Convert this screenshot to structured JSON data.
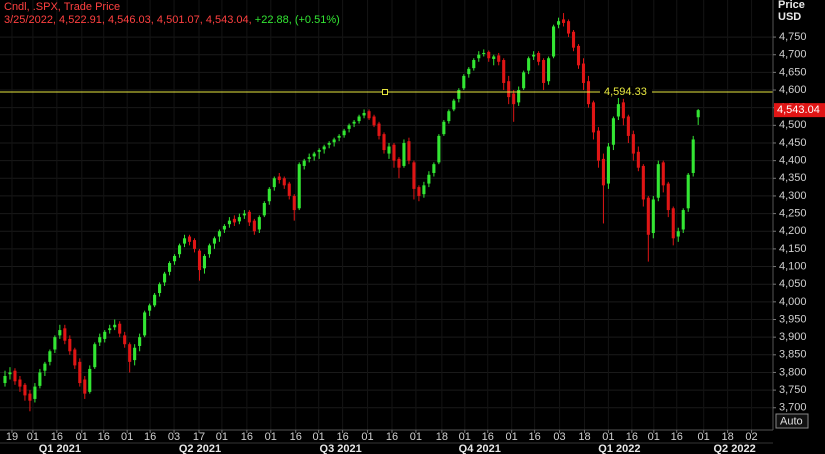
{
  "chart_data": {
    "type": "candlestick",
    "legend": "Cndl, .SPX, Trade Price",
    "legend_values": "3/25/2022, 4,522.91, 4,546.03, 4,501.07, 4,543.04,",
    "legend_change": "+22.88, (+0.51%)",
    "y_axis_title": "Price",
    "y_axis_unit": "USD",
    "button": "Auto",
    "up_color": "#33e633",
    "down_color": "#e01515",
    "grid": true,
    "ylim": [
      3637,
      4855
    ],
    "yticks": [
      {
        "value": 3700,
        "label": "3,700"
      },
      {
        "value": 3750,
        "label": "3,750"
      },
      {
        "value": 3800,
        "label": "3,800"
      },
      {
        "value": 3850,
        "label": "3,850"
      },
      {
        "value": 3900,
        "label": "3,900"
      },
      {
        "value": 3950,
        "label": "3,950"
      },
      {
        "value": 4000,
        "label": "4,000"
      },
      {
        "value": 4050,
        "label": "4,050"
      },
      {
        "value": 4100,
        "label": "4,100"
      },
      {
        "value": 4150,
        "label": "4,150"
      },
      {
        "value": 4200,
        "label": "4,200"
      },
      {
        "value": 4250,
        "label": "4,250"
      },
      {
        "value": 4300,
        "label": "4,300"
      },
      {
        "value": 4350,
        "label": "4,350"
      },
      {
        "value": 4400,
        "label": "4,400"
      },
      {
        "value": 4450,
        "label": "4,450"
      },
      {
        "value": 4500,
        "label": "4,500"
      },
      {
        "value": 4550,
        "label": "4,550"
      },
      {
        "value": 4600,
        "label": "4,600"
      },
      {
        "value": 4650,
        "label": "4,650"
      },
      {
        "value": 4700,
        "label": "4,700"
      },
      {
        "value": 4750,
        "label": "4,750"
      }
    ],
    "xlim": [
      -1,
      154
    ],
    "xticks": [
      {
        "value": 1.4,
        "label": "19"
      },
      {
        "value": 5.6,
        "label": "01"
      },
      {
        "value": 10.4,
        "label": "16"
      },
      {
        "value": 15.4,
        "label": "01"
      },
      {
        "value": 19.8,
        "label": "16"
      },
      {
        "value": 24.5,
        "label": "01"
      },
      {
        "value": 29.1,
        "label": "16"
      },
      {
        "value": 33.9,
        "label": "03"
      },
      {
        "value": 38.9,
        "label": "17"
      },
      {
        "value": 43.5,
        "label": "01"
      },
      {
        "value": 48.5,
        "label": "16"
      },
      {
        "value": 53.3,
        "label": "01"
      },
      {
        "value": 58.3,
        "label": "16"
      },
      {
        "value": 62.9,
        "label": "01"
      },
      {
        "value": 67.7,
        "label": "16"
      },
      {
        "value": 72.7,
        "label": "01"
      },
      {
        "value": 77.6,
        "label": "16"
      },
      {
        "value": 82.4,
        "label": "01"
      },
      {
        "value": 87.6,
        "label": "18"
      },
      {
        "value": 92.2,
        "label": "01"
      },
      {
        "value": 96.8,
        "label": "16"
      },
      {
        "value": 101.6,
        "label": "01"
      },
      {
        "value": 106.2,
        "label": "16"
      },
      {
        "value": 111.2,
        "label": "03"
      },
      {
        "value": 116.2,
        "label": "18"
      },
      {
        "value": 121.0,
        "label": "01"
      },
      {
        "value": 125.7,
        "label": "16"
      },
      {
        "value": 130.1,
        "label": "01"
      },
      {
        "value": 134.7,
        "label": "16"
      },
      {
        "value": 140.1,
        "label": "01"
      },
      {
        "value": 144.9,
        "label": "18"
      },
      {
        "value": 149.7,
        "label": "02"
      }
    ],
    "quarter_ticks": [
      {
        "value": 11.0,
        "label": "Q1 2021"
      },
      {
        "value": 39.1,
        "label": "Q2 2021"
      },
      {
        "value": 67.3,
        "label": "Q3 2021"
      },
      {
        "value": 95.2,
        "label": "Q4 2021"
      },
      {
        "value": 123.2,
        "label": "Q1 2022"
      },
      {
        "value": 146.3,
        "label": "Q2 2022"
      }
    ],
    "hline": {
      "value": 4594.33,
      "label": "4,594.33",
      "color": "#e8e840"
    },
    "last_price": {
      "value": 4543.04,
      "label": "4,543.04"
    },
    "candles": [
      [
        3770,
        3805,
        3760,
        3790
      ],
      [
        3795,
        3815,
        3780,
        3800
      ],
      [
        3805,
        3812,
        3765,
        3775
      ],
      [
        3780,
        3790,
        3745,
        3760
      ],
      [
        3765,
        3770,
        3720,
        3735
      ],
      [
        3740,
        3750,
        3690,
        3720
      ],
      [
        3725,
        3770,
        3715,
        3760
      ],
      [
        3762,
        3810,
        3755,
        3800
      ],
      [
        3805,
        3830,
        3790,
        3825
      ],
      [
        3830,
        3865,
        3820,
        3860
      ],
      [
        3865,
        3905,
        3855,
        3900
      ],
      [
        3905,
        3935,
        3895,
        3920
      ],
      [
        3925,
        3935,
        3880,
        3890
      ],
      [
        3895,
        3905,
        3850,
        3860
      ],
      [
        3865,
        3870,
        3810,
        3820
      ],
      [
        3830,
        3840,
        3760,
        3770
      ],
      [
        3780,
        3790,
        3725,
        3740
      ],
      [
        3745,
        3820,
        3740,
        3810
      ],
      [
        3815,
        3885,
        3810,
        3880
      ],
      [
        3885,
        3910,
        3875,
        3900
      ],
      [
        3895,
        3920,
        3885,
        3915
      ],
      [
        3920,
        3935,
        3910,
        3925
      ],
      [
        3928,
        3950,
        3920,
        3935
      ],
      [
        3938,
        3945,
        3900,
        3910
      ],
      [
        3905,
        3915,
        3870,
        3880
      ],
      [
        3880,
        3885,
        3800,
        3830
      ],
      [
        3835,
        3880,
        3820,
        3870
      ],
      [
        3875,
        3910,
        3860,
        3900
      ],
      [
        3905,
        3975,
        3900,
        3970
      ],
      [
        3975,
        3995,
        3960,
        3990
      ],
      [
        3990,
        4025,
        3985,
        4020
      ],
      [
        4025,
        4055,
        4015,
        4050
      ],
      [
        4055,
        4085,
        4045,
        4080
      ],
      [
        4085,
        4115,
        4075,
        4110
      ],
      [
        4115,
        4135,
        4105,
        4130
      ],
      [
        4135,
        4165,
        4125,
        4160
      ],
      [
        4165,
        4190,
        4155,
        4180
      ],
      [
        4185,
        4190,
        4160,
        4170
      ],
      [
        4175,
        4180,
        4140,
        4150
      ],
      [
        4145,
        4150,
        4060,
        4090
      ],
      [
        4095,
        4135,
        4080,
        4130
      ],
      [
        4135,
        4165,
        4125,
        4160
      ],
      [
        4165,
        4185,
        4150,
        4180
      ],
      [
        4185,
        4205,
        4170,
        4200
      ],
      [
        4205,
        4220,
        4195,
        4215
      ],
      [
        4220,
        4240,
        4210,
        4230
      ],
      [
        4235,
        4245,
        4215,
        4225
      ],
      [
        4228,
        4250,
        4220,
        4240
      ],
      [
        4245,
        4260,
        4235,
        4250
      ],
      [
        4255,
        4260,
        4215,
        4225
      ],
      [
        4230,
        4235,
        4190,
        4200
      ],
      [
        4205,
        4245,
        4195,
        4240
      ],
      [
        4245,
        4285,
        4240,
        4280
      ],
      [
        4285,
        4325,
        4275,
        4320
      ],
      [
        4325,
        4355,
        4315,
        4350
      ],
      [
        4355,
        4365,
        4335,
        4345
      ],
      [
        4350,
        4355,
        4320,
        4330
      ],
      [
        4335,
        4340,
        4290,
        4300
      ],
      [
        4300,
        4305,
        4230,
        4260
      ],
      [
        4265,
        4395,
        4260,
        4390
      ],
      [
        4385,
        4405,
        4375,
        4400
      ],
      [
        4405,
        4420,
        4395,
        4410
      ],
      [
        4412,
        4425,
        4400,
        4420
      ],
      [
        4425,
        4435,
        4405,
        4430
      ],
      [
        4432,
        4445,
        4420,
        4440
      ],
      [
        4445,
        4455,
        4435,
        4450
      ],
      [
        4452,
        4465,
        4440,
        4460
      ],
      [
        4465,
        4475,
        4455,
        4470
      ],
      [
        4472,
        4490,
        4465,
        4485
      ],
      [
        4490,
        4505,
        4480,
        4500
      ],
      [
        4505,
        4515,
        4495,
        4510
      ],
      [
        4512,
        4530,
        4505,
        4525
      ],
      [
        4528,
        4545,
        4520,
        4535
      ],
      [
        4540,
        4545,
        4515,
        4520
      ],
      [
        4525,
        4530,
        4495,
        4500
      ],
      [
        4505,
        4510,
        4460,
        4470
      ],
      [
        4475,
        4480,
        4420,
        4430
      ],
      [
        4420,
        4450,
        4405,
        4440
      ],
      [
        4445,
        4450,
        4380,
        4400
      ],
      [
        4405,
        4410,
        4350,
        4380
      ],
      [
        4385,
        4460,
        4380,
        4450
      ],
      [
        4455,
        4465,
        4390,
        4400
      ],
      [
        4395,
        4400,
        4290,
        4320
      ],
      [
        4325,
        4330,
        4285,
        4300
      ],
      [
        4305,
        4340,
        4295,
        4330
      ],
      [
        4335,
        4370,
        4325,
        4360
      ],
      [
        4365,
        4395,
        4355,
        4390
      ],
      [
        4395,
        4475,
        4390,
        4470
      ],
      [
        4475,
        4515,
        4470,
        4510
      ],
      [
        4512,
        4545,
        4505,
        4540
      ],
      [
        4545,
        4575,
        4540,
        4570
      ],
      [
        4575,
        4605,
        4565,
        4600
      ],
      [
        4605,
        4645,
        4600,
        4640
      ],
      [
        4645,
        4665,
        4635,
        4660
      ],
      [
        4662,
        4690,
        4655,
        4685
      ],
      [
        4690,
        4710,
        4680,
        4700
      ],
      [
        4702,
        4715,
        4695,
        4705
      ],
      [
        4708,
        4712,
        4680,
        4690
      ],
      [
        4688,
        4700,
        4670,
        4695
      ],
      [
        4698,
        4705,
        4670,
        4680
      ],
      [
        4685,
        4690,
        4600,
        4620
      ],
      [
        4625,
        4640,
        4560,
        4580
      ],
      [
        4590,
        4600,
        4510,
        4560
      ],
      [
        4565,
        4610,
        4555,
        4600
      ],
      [
        4605,
        4655,
        4600,
        4650
      ],
      [
        4655,
        4695,
        4645,
        4690
      ],
      [
        4695,
        4710,
        4685,
        4700
      ],
      [
        4705,
        4710,
        4670,
        4680
      ],
      [
        4685,
        4690,
        4600,
        4620
      ],
      [
        4625,
        4695,
        4615,
        4690
      ],
      [
        4695,
        4785,
        4690,
        4780
      ],
      [
        4785,
        4805,
        4775,
        4795
      ],
      [
        4800,
        4818,
        4780,
        4790
      ],
      [
        4795,
        4800,
        4750,
        4760
      ],
      [
        4765,
        4770,
        4710,
        4720
      ],
      [
        4725,
        4730,
        4660,
        4670
      ],
      [
        4675,
        4690,
        4600,
        4620
      ],
      [
        4625,
        4640,
        4550,
        4560
      ],
      [
        4565,
        4570,
        4460,
        4480
      ],
      [
        4485,
        4495,
        4380,
        4400
      ],
      [
        4405,
        4420,
        4222,
        4330
      ],
      [
        4335,
        4450,
        4320,
        4440
      ],
      [
        4445,
        4525,
        4430,
        4520
      ],
      [
        4525,
        4590,
        4515,
        4560
      ],
      [
        4565,
        4575,
        4500,
        4520
      ],
      [
        4525,
        4530,
        4450,
        4470
      ],
      [
        4475,
        4485,
        4400,
        4420
      ],
      [
        4425,
        4440,
        4370,
        4380
      ],
      [
        4385,
        4390,
        4270,
        4290
      ],
      [
        4295,
        4300,
        4114,
        4190
      ],
      [
        4195,
        4300,
        4180,
        4290
      ],
      [
        4295,
        4400,
        4285,
        4390
      ],
      [
        4395,
        4400,
        4310,
        4330
      ],
      [
        4335,
        4340,
        4240,
        4260
      ],
      [
        4265,
        4270,
        4160,
        4180
      ],
      [
        4185,
        4210,
        4170,
        4200
      ],
      [
        4205,
        4265,
        4195,
        4260
      ],
      [
        4265,
        4365,
        4255,
        4360
      ],
      [
        4365,
        4470,
        4355,
        4460
      ],
      [
        4522.91,
        4546.03,
        4501.07,
        4543.04
      ]
    ]
  }
}
